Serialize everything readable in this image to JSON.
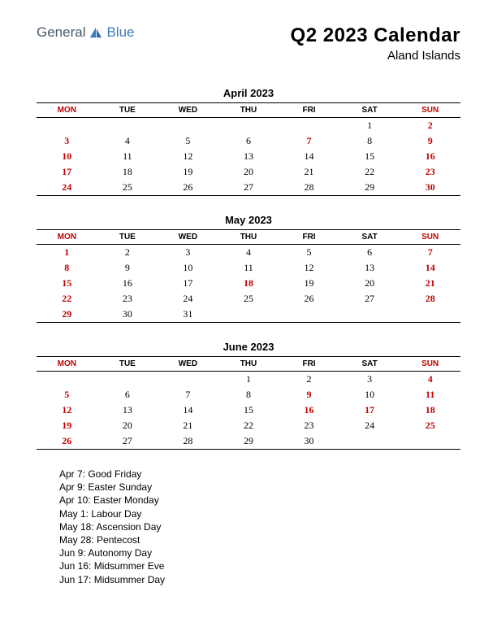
{
  "logo": {
    "part1": "General",
    "part2": "Blue",
    "color1": "#4a5a6a",
    "color2": "#3a7bbd"
  },
  "title": "Q2 2023 Calendar",
  "subtitle": "Aland Islands",
  "day_headers": [
    "MON",
    "TUE",
    "WED",
    "THU",
    "FRI",
    "SAT",
    "SUN"
  ],
  "header_red_cols": [
    0,
    6
  ],
  "months": [
    {
      "name": "April 2023",
      "weeks": [
        [
          "",
          "",
          "",
          "",
          "",
          "1",
          "2"
        ],
        [
          "3",
          "4",
          "5",
          "6",
          "7",
          "8",
          "9"
        ],
        [
          "10",
          "11",
          "12",
          "13",
          "14",
          "15",
          "16"
        ],
        [
          "17",
          "18",
          "19",
          "20",
          "21",
          "22",
          "23"
        ],
        [
          "24",
          "25",
          "26",
          "27",
          "28",
          "29",
          "30"
        ]
      ],
      "red_cells": [
        [
          0,
          6
        ],
        [
          1,
          0
        ],
        [
          1,
          4
        ],
        [
          1,
          6
        ],
        [
          2,
          0
        ],
        [
          2,
          6
        ],
        [
          3,
          0
        ],
        [
          3,
          6
        ],
        [
          4,
          0
        ],
        [
          4,
          6
        ]
      ]
    },
    {
      "name": "May 2023",
      "weeks": [
        [
          "1",
          "2",
          "3",
          "4",
          "5",
          "6",
          "7"
        ],
        [
          "8",
          "9",
          "10",
          "11",
          "12",
          "13",
          "14"
        ],
        [
          "15",
          "16",
          "17",
          "18",
          "19",
          "20",
          "21"
        ],
        [
          "22",
          "23",
          "24",
          "25",
          "26",
          "27",
          "28"
        ],
        [
          "29",
          "30",
          "31",
          "",
          "",
          "",
          ""
        ]
      ],
      "red_cells": [
        [
          0,
          0
        ],
        [
          0,
          6
        ],
        [
          1,
          0
        ],
        [
          1,
          6
        ],
        [
          2,
          0
        ],
        [
          2,
          3
        ],
        [
          2,
          6
        ],
        [
          3,
          0
        ],
        [
          3,
          6
        ],
        [
          4,
          0
        ]
      ]
    },
    {
      "name": "June 2023",
      "weeks": [
        [
          "",
          "",
          "",
          "1",
          "2",
          "3",
          "4"
        ],
        [
          "5",
          "6",
          "7",
          "8",
          "9",
          "10",
          "11"
        ],
        [
          "12",
          "13",
          "14",
          "15",
          "16",
          "17",
          "18"
        ],
        [
          "19",
          "20",
          "21",
          "22",
          "23",
          "24",
          "25"
        ],
        [
          "26",
          "27",
          "28",
          "29",
          "30",
          "",
          ""
        ]
      ],
      "red_cells": [
        [
          0,
          6
        ],
        [
          1,
          0
        ],
        [
          1,
          4
        ],
        [
          1,
          6
        ],
        [
          2,
          0
        ],
        [
          2,
          4
        ],
        [
          2,
          5
        ],
        [
          2,
          6
        ],
        [
          3,
          0
        ],
        [
          3,
          6
        ],
        [
          4,
          0
        ]
      ]
    }
  ],
  "holidays": [
    "Apr 7: Good Friday",
    "Apr 9: Easter Sunday",
    "Apr 10: Easter Monday",
    "May 1: Labour Day",
    "May 18: Ascension Day",
    "May 28: Pentecost",
    "Jun 9: Autonomy Day",
    "Jun 16: Midsummer Eve",
    "Jun 17: Midsummer Day"
  ],
  "colors": {
    "red": "#c00000",
    "black": "#000000",
    "background": "#ffffff"
  },
  "fonts": {
    "title_size": 24,
    "subtitle_size": 15,
    "month_title_size": 13,
    "header_size": 10,
    "cell_size": 12,
    "holiday_size": 12
  }
}
